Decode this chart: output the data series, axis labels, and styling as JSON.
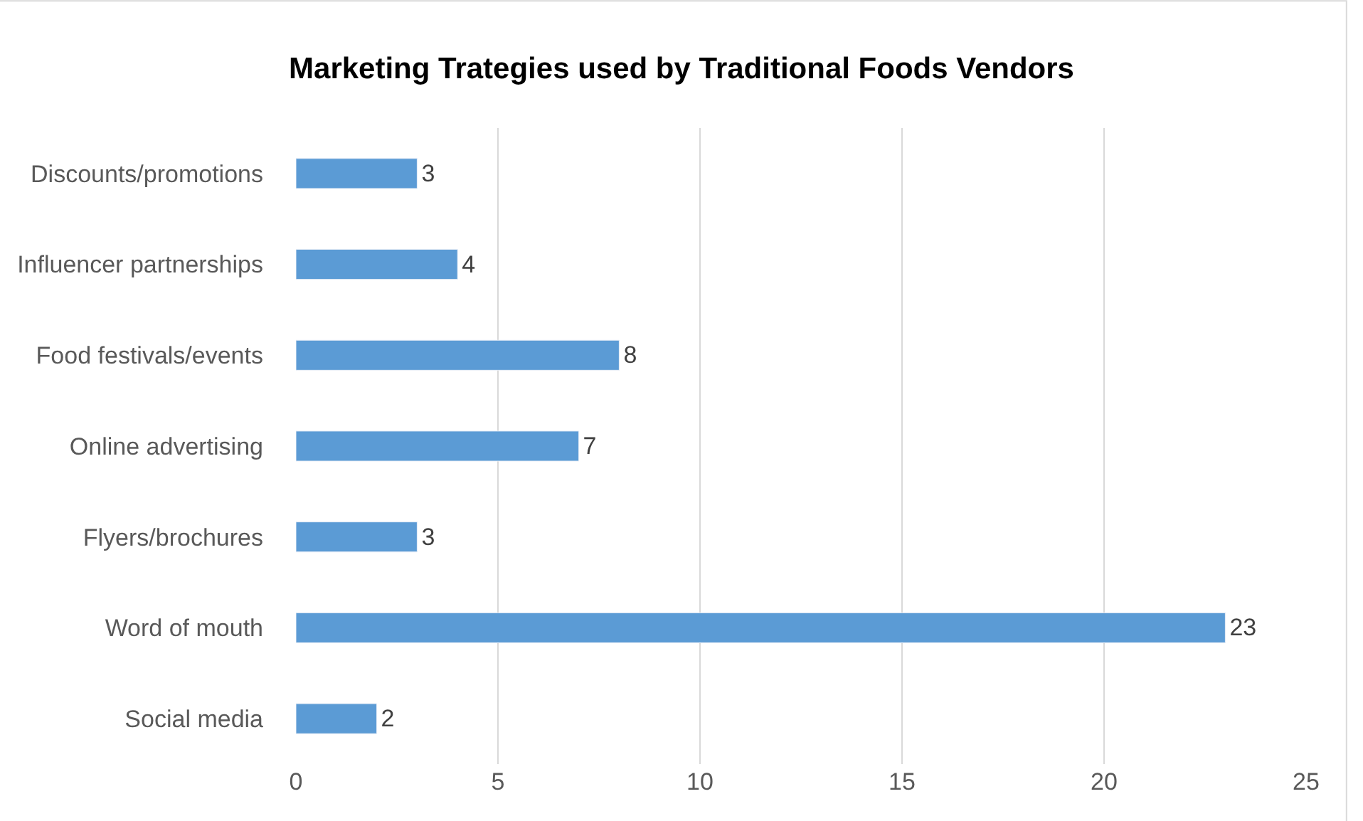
{
  "chart_data": {
    "type": "bar",
    "orientation": "horizontal",
    "title": "Marketing Trategies used by Traditional Foods Vendors",
    "categories": [
      "Discounts/promotions",
      "Influencer partnerships",
      "Food festivals/events",
      "Online advertising",
      "Flyers/brochures",
      "Word of mouth",
      "Social media"
    ],
    "values": [
      3,
      4,
      8,
      7,
      3,
      23,
      2
    ],
    "color": "#5b9bd5",
    "xlim": [
      0,
      25
    ],
    "xticks": [
      0,
      5,
      10,
      15,
      20,
      25
    ],
    "grid": "x",
    "data_labels": true,
    "legend": false
  }
}
